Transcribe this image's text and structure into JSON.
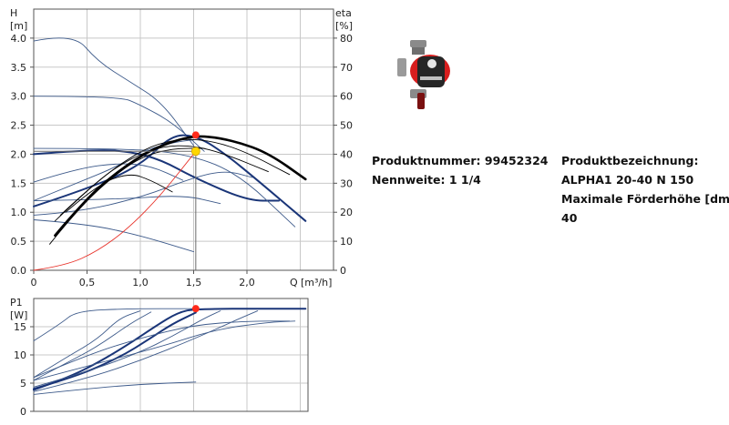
{
  "product": {
    "number_label": "Produktnummer: 99452324",
    "nominal_label": "Nennweite: 1 1/4",
    "designation_label": "Produktbezeichnung:",
    "designation_value": "ALPHA1 20-40 N 150",
    "max_head_label": "Maximale Förderhöhe [dm]:",
    "max_head_value": "40"
  },
  "colors": {
    "grid": "#c8c8c8",
    "thin_curve": "#3d5a8a",
    "bold_curve": "#1a3578",
    "efficiency": "#000000",
    "system_curve": "#e8322a",
    "duty_marker": "#ff2a1a",
    "operating_marker": "#ffd700"
  },
  "chart_data": [
    {
      "type": "line",
      "xlabel": "Q",
      "xunit": "[m³/h]",
      "ylabel_left": "H",
      "yunit_left": "[m]",
      "ylabel_right": "eta",
      "yunit_right": "[%]",
      "xlim": [
        0,
        2.75
      ],
      "ylim_left": [
        0,
        4.5
      ],
      "ylim_right": [
        0,
        90
      ],
      "grid": true,
      "x_ticks": [
        "0",
        "0,5",
        "1,0",
        "1,5",
        "2,0"
      ],
      "y_ticks_left": [
        "0.0",
        "0.5",
        "1.0",
        "1.5",
        "2.0",
        "2.5",
        "3.0",
        "3.5",
        "4.0"
      ],
      "y_ticks_right": [
        "0",
        "10",
        "20",
        "30",
        "40",
        "50",
        "60",
        "70",
        "80"
      ],
      "series": [
        {
          "role": "pump-head",
          "weight": "thin",
          "points": [
            [
              0,
              3.95
            ],
            [
              0.37,
              4.09
            ],
            [
              0.6,
              3.6
            ],
            [
              0.9,
              3.25
            ],
            [
              1.2,
              2.9
            ],
            [
              1.5,
              2.15
            ]
          ]
        },
        {
          "role": "pump-head",
          "weight": "thin",
          "points": [
            [
              0,
              3.0
            ],
            [
              0.8,
              3.0
            ],
            [
              1.0,
              2.85
            ],
            [
              1.3,
              2.55
            ],
            [
              1.6,
              2.05
            ]
          ]
        },
        {
          "role": "pump-head",
          "weight": "bold",
          "points": [
            [
              0,
              1.1
            ],
            [
              0.5,
              1.4
            ],
            [
              1.0,
              1.8
            ],
            [
              1.3,
              2.35
            ],
            [
              1.55,
              2.3
            ],
            [
              1.8,
              2.0
            ],
            [
              2.1,
              1.55
            ],
            [
              2.55,
              0.85
            ]
          ]
        },
        {
          "role": "pump-head",
          "weight": "bold",
          "points": [
            [
              0,
              2.0
            ],
            [
              0.55,
              2.08
            ],
            [
              0.9,
              2.05
            ],
            [
              1.2,
              1.9
            ],
            [
              1.5,
              1.6
            ],
            [
              2.0,
              1.2
            ],
            [
              2.3,
              1.2
            ]
          ]
        },
        {
          "role": "pump-head",
          "weight": "thin",
          "points": [
            [
              0,
              1.52
            ],
            [
              0.4,
              1.75
            ],
            [
              0.8,
              1.85
            ],
            [
              1.1,
              1.8
            ],
            [
              1.4,
              1.55
            ]
          ]
        },
        {
          "role": "pump-head",
          "weight": "thin",
          "points": [
            [
              0,
              2.1
            ],
            [
              0.8,
              2.1
            ],
            [
              1.4,
              2.02
            ],
            [
              1.9,
              1.7
            ],
            [
              2.45,
              0.75
            ]
          ]
        },
        {
          "role": "pump-head",
          "weight": "thin",
          "points": [
            [
              0,
              1.2
            ],
            [
              0.8,
              1.22
            ],
            [
              1.4,
              1.3
            ],
            [
              1.75,
              1.15
            ]
          ]
        },
        {
          "role": "pump-head",
          "weight": "thin",
          "points": [
            [
              0,
              0.95
            ],
            [
              0.4,
              1.0
            ],
            [
              1.0,
              1.25
            ],
            [
              1.5,
              1.6
            ],
            [
              1.8,
              1.72
            ],
            [
              2.05,
              1.6
            ]
          ]
        },
        {
          "role": "pump-head",
          "weight": "thin",
          "points": [
            [
              0,
              0.87
            ],
            [
              0.5,
              0.8
            ],
            [
              1.0,
              0.6
            ],
            [
              1.5,
              0.32
            ]
          ]
        },
        {
          "role": "pump-head",
          "weight": "thin",
          "points": [
            [
              0,
              1.2
            ],
            [
              0.4,
              1.5
            ],
            [
              0.8,
              1.8
            ],
            [
              1.0,
              2.05
            ],
            [
              1.3,
              2.2
            ],
            [
              1.5,
              2.25
            ]
          ]
        },
        {
          "role": "efficiency",
          "weight": "bold",
          "points": [
            [
              0.2,
              0.6
            ],
            [
              0.5,
              1.25
            ],
            [
              0.8,
              1.72
            ],
            [
              1.1,
              2.08
            ],
            [
              1.4,
              2.28
            ],
            [
              1.6,
              2.32
            ],
            [
              1.9,
              2.22
            ],
            [
              2.2,
              2.02
            ],
            [
              2.55,
              1.57
            ]
          ]
        },
        {
          "role": "efficiency",
          "weight": "thin",
          "points": [
            [
              0.2,
              0.85
            ],
            [
              0.5,
              1.38
            ],
            [
              0.8,
              1.82
            ],
            [
              1.1,
              2.15
            ],
            [
              1.4,
              2.27
            ],
            [
              1.7,
              2.22
            ],
            [
              2.0,
              2.03
            ],
            [
              2.4,
              1.65
            ]
          ]
        },
        {
          "role": "efficiency",
          "weight": "thin",
          "points": [
            [
              0.25,
              0.95
            ],
            [
              0.6,
              1.55
            ],
            [
              0.9,
              1.92
            ],
            [
              1.2,
              2.14
            ],
            [
              1.5,
              2.15
            ],
            [
              1.8,
              2.0
            ],
            [
              2.2,
              1.7
            ]
          ]
        },
        {
          "role": "efficiency",
          "weight": "thin",
          "points": [
            [
              0.3,
              1.0
            ],
            [
              0.6,
              1.48
            ],
            [
              0.9,
              1.68
            ],
            [
              1.1,
              1.55
            ],
            [
              1.3,
              1.35
            ]
          ]
        },
        {
          "role": "efficiency",
          "weight": "thin",
          "points": [
            [
              0.15,
              0.45
            ],
            [
              0.4,
              1.02
            ],
            [
              0.7,
              1.55
            ],
            [
              1.0,
              1.95
            ],
            [
              1.3,
              2.1
            ],
            [
              1.6,
              2.1
            ]
          ]
        },
        {
          "role": "system",
          "weight": "thin",
          "points": [
            [
              0,
              0
            ],
            [
              0.3,
              0.08
            ],
            [
              0.6,
              0.33
            ],
            [
              0.9,
              0.74
            ],
            [
              1.2,
              1.31
            ],
            [
              1.52,
              2.05
            ]
          ]
        }
      ],
      "duty_point": {
        "x": 1.52,
        "y": 2.33
      },
      "operating_point": {
        "x": 1.52,
        "y": 2.05
      }
    },
    {
      "type": "line",
      "ylabel": "P1",
      "yunit": "[W]",
      "xlim": [
        0,
        2.75
      ],
      "ylim": [
        0,
        20
      ],
      "grid": true,
      "y_ticks": [
        "0",
        "5",
        "10",
        "15"
      ],
      "series": [
        {
          "weight": "thin",
          "points": [
            [
              0,
              12.5
            ],
            [
              0.25,
              15.5
            ],
            [
              0.4,
              17.8
            ],
            [
              0.9,
              18.2
            ],
            [
              1.5,
              18.2
            ]
          ]
        },
        {
          "weight": "thin",
          "points": [
            [
              0,
              5.5
            ],
            [
              0.3,
              8.5
            ],
            [
              0.6,
              11.5
            ],
            [
              0.9,
              15.5
            ],
            [
              1.1,
              17.6
            ]
          ]
        },
        {
          "weight": "thin",
          "points": [
            [
              0,
              6.0
            ],
            [
              0.3,
              9.5
            ],
            [
              0.6,
              12.8
            ],
            [
              0.8,
              16.5
            ],
            [
              1.0,
              17.8
            ]
          ]
        },
        {
          "weight": "bold",
          "points": [
            [
              0,
              3.8
            ],
            [
              0.3,
              5.8
            ],
            [
              0.6,
              8.6
            ],
            [
              0.9,
              12.0
            ],
            [
              1.15,
              15.2
            ],
            [
              1.35,
              17.5
            ],
            [
              1.52,
              18.2
            ],
            [
              2.55,
              18.2
            ]
          ]
        },
        {
          "weight": "bold",
          "points": [
            [
              0,
              4.0
            ],
            [
              0.4,
              6.2
            ],
            [
              0.8,
              9.5
            ],
            [
              1.1,
              13.0
            ],
            [
              1.3,
              15.5
            ],
            [
              1.52,
              17.5
            ]
          ]
        },
        {
          "weight": "thin",
          "points": [
            [
              0,
              4.3
            ],
            [
              0.5,
              7.0
            ],
            [
              1.0,
              10.5
            ],
            [
              1.3,
              13.3
            ],
            [
              1.6,
              16.5
            ],
            [
              1.75,
              17.8
            ]
          ]
        },
        {
          "weight": "thin",
          "points": [
            [
              0,
              3.5
            ],
            [
              0.5,
              5.8
            ],
            [
              1.0,
              9.0
            ],
            [
              1.5,
              12.8
            ],
            [
              1.9,
              16.2
            ],
            [
              2.1,
              17.8
            ]
          ]
        },
        {
          "weight": "thin",
          "points": [
            [
              0,
              5.5
            ],
            [
              0.6,
              8.5
            ],
            [
              1.2,
              11.5
            ],
            [
              1.7,
              14.5
            ],
            [
              2.2,
              15.8
            ],
            [
              2.45,
              16.0
            ]
          ]
        },
        {
          "weight": "thin",
          "points": [
            [
              0,
              3.0
            ],
            [
              0.5,
              4.0
            ],
            [
              1.0,
              4.8
            ],
            [
              1.52,
              5.2
            ]
          ]
        },
        {
          "weight": "thin",
          "points": [
            [
              0,
              6.0
            ],
            [
              0.5,
              10.0
            ],
            [
              1.0,
              13.0
            ],
            [
              1.5,
              15.3
            ],
            [
              2.0,
              16.0
            ],
            [
              2.4,
              16.0
            ]
          ]
        }
      ],
      "duty_point": {
        "x": 1.52,
        "y": 18.2
      }
    }
  ]
}
